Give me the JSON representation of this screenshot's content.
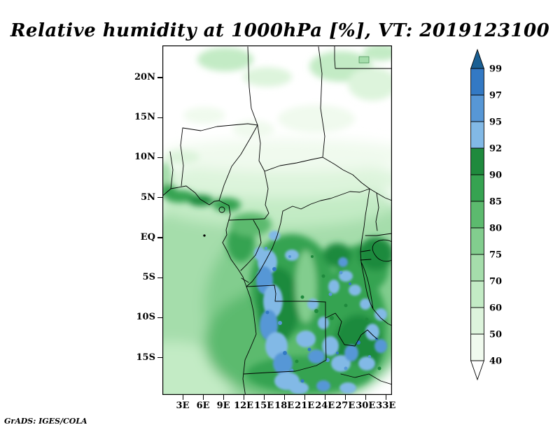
{
  "chart_data": {
    "type": "heatmap",
    "title": "Relative humidity at 1000hPa [%], VT: 2019123100",
    "variable": "Relative humidity",
    "pressure_level": "1000hPa",
    "units": "%",
    "valid_time": "2019123100",
    "credit": "GrADS: IGES/COLA",
    "x_ticks": [
      "3E",
      "6E",
      "9E",
      "12E",
      "15E",
      "18E",
      "21E",
      "24E",
      "27E",
      "30E",
      "33E"
    ],
    "y_ticks": [
      "20N",
      "15N",
      "10N",
      "5N",
      "EQ",
      "5S",
      "10S",
      "15S"
    ],
    "lon_range": [
      0,
      33.9
    ],
    "lat_range": [
      -19.65,
      24
    ],
    "grid": false,
    "legend_position": "right",
    "colorbar": {
      "tick_labels": [
        "99",
        "97",
        "95",
        "92",
        "90",
        "85",
        "80",
        "75",
        "70",
        "60",
        "50",
        "40"
      ],
      "segments": [
        {
          "range": ">99",
          "color": "#1a5f93"
        },
        {
          "range": "97-99",
          "color": "#3379c4"
        },
        {
          "range": "95-97",
          "color": "#5797d6"
        },
        {
          "range": "92-95",
          "color": "#82b9e6"
        },
        {
          "range": "90-92",
          "color": "#1f8a3d"
        },
        {
          "range": "85-90",
          "color": "#36a351"
        },
        {
          "range": "80-85",
          "color": "#5cba6e"
        },
        {
          "range": "75-80",
          "color": "#82cd8e"
        },
        {
          "range": "70-75",
          "color": "#a5ddab"
        },
        {
          "range": "60-70",
          "color": "#c3ebc5"
        },
        {
          "range": "50-60",
          "color": "#ddf4dc"
        },
        {
          "range": "40-50",
          "color": "#f0faee"
        },
        {
          "range": "<40",
          "color": "#ffffff"
        }
      ]
    },
    "features": [
      {
        "region": "north of ~10N (Sahel)",
        "humidity": "under 40 to 60"
      },
      {
        "region": "Guinea coast band near 5N",
        "humidity": "85-92"
      },
      {
        "region": "Atlantic ocean (southwest of map)",
        "humidity": "60-80"
      },
      {
        "region": "Congo basin south of equator",
        "humidity": "85-99 with many patches above 92 (blue)"
      },
      {
        "region": "southern and eastern interior 5S-15S",
        "humidity": "85-99"
      }
    ]
  }
}
